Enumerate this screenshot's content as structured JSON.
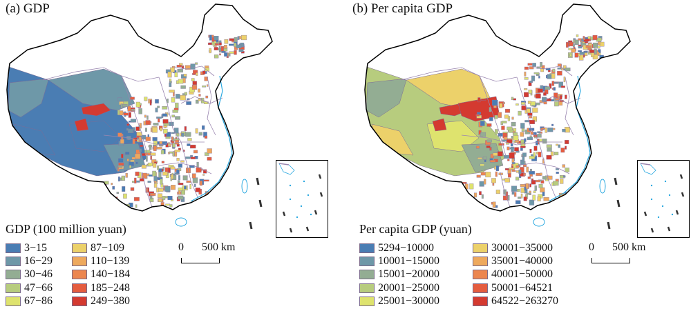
{
  "panels": [
    {
      "title": "(a) GDP",
      "legend_title": "GDP (100 million yuan)",
      "legend": [
        {
          "label": "3−15",
          "color": "#4a7db3"
        },
        {
          "label": "16−29",
          "color": "#6e98a8"
        },
        {
          "label": "30−46",
          "color": "#93ad93"
        },
        {
          "label": "47−66",
          "color": "#b7cc7e"
        },
        {
          "label": "67−86",
          "color": "#dee36e"
        },
        {
          "label": "87−109",
          "color": "#ecd16a"
        },
        {
          "label": "110−139",
          "color": "#eea95d"
        },
        {
          "label": "140−184",
          "color": "#ec8650"
        },
        {
          "label": "185−248",
          "color": "#e55c3f"
        },
        {
          "label": "249−380",
          "color": "#d43a30"
        }
      ],
      "scale": {
        "zero": "0",
        "label": "500 km"
      }
    },
    {
      "title": "(b) Per capita GDP",
      "legend_title": "Per capita GDP (yuan)",
      "legend": [
        {
          "label": "5294−10000",
          "color": "#4a7db3"
        },
        {
          "label": "10001−15000",
          "color": "#6e98a8"
        },
        {
          "label": "15001−20000",
          "color": "#93ad93"
        },
        {
          "label": "20001−25000",
          "color": "#b7cc7e"
        },
        {
          "label": "25001−30000",
          "color": "#dee36e"
        },
        {
          "label": "30001−35000",
          "color": "#ecd16a"
        },
        {
          "label": "35001−40000",
          "color": "#eea95d"
        },
        {
          "label": "40001−50000",
          "color": "#ec8650"
        },
        {
          "label": "50001−64521",
          "color": "#e55c3f"
        },
        {
          "label": "64522−263270",
          "color": "#d43a30"
        }
      ],
      "scale": {
        "zero": "0",
        "label": "500 km"
      }
    }
  ],
  "colors": {
    "boundary": "#000000",
    "province_line": "#9a86b0",
    "sea_coast": "#29a8e0"
  }
}
